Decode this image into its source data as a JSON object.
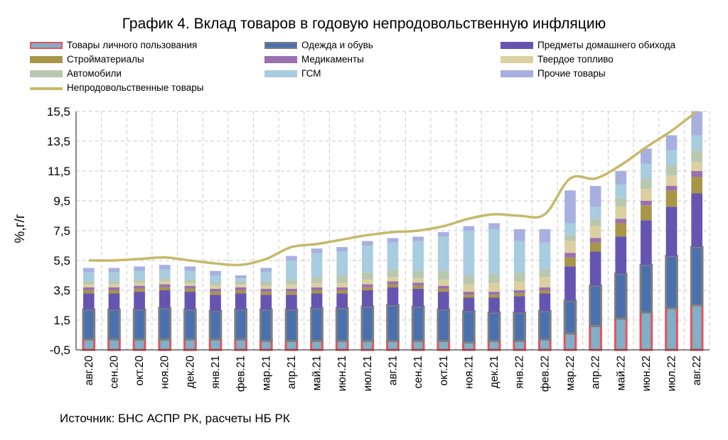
{
  "chart_data": {
    "type": "bar",
    "stacked": true,
    "title": "График 4. Вклад товаров в годовую непродовольственную инфляцию",
    "ylabel": "%,г/г",
    "xlabel": "",
    "ylim": [
      -0.5,
      15.5
    ],
    "yticks": [
      "15,5",
      "13,5",
      "11,5",
      "9,5",
      "7,5",
      "5,5",
      "3,5",
      "1,5",
      "-0,5"
    ],
    "ytick_values": [
      15.5,
      13.5,
      11.5,
      9.5,
      7.5,
      5.5,
      3.5,
      1.5,
      -0.5
    ],
    "grid": true,
    "legend_position": "top",
    "source": "Источник: БНС АСПР РК, расчеты НБ РК",
    "categories": [
      "авг.20",
      "сен.20",
      "окт.20",
      "ноя.20",
      "дек.20",
      "янв.21",
      "фев.21",
      "мар.21",
      "апр.21",
      "май.21",
      "июн.21",
      "июл.21",
      "авг.21",
      "сен.21",
      "окт.21",
      "ноя.21",
      "дек.21",
      "янв.22",
      "фев.22",
      "мар.22",
      "апр.22",
      "май.22",
      "июн.22",
      "июл.22",
      "авг.22"
    ],
    "series": [
      {
        "name": "Товары личного пользования",
        "color": "#7fb0c8",
        "border": "#e8525a",
        "values": [
          0.7,
          0.7,
          0.7,
          0.7,
          0.7,
          0.7,
          0.7,
          0.6,
          0.6,
          0.6,
          0.6,
          0.6,
          0.6,
          0.6,
          0.6,
          0.5,
          0.6,
          0.6,
          0.7,
          1.1,
          1.6,
          2.1,
          2.5,
          2.8,
          3.0
        ]
      },
      {
        "name": "Одежда и обувь",
        "color": "#4a70b0",
        "border": "#7f7f7f",
        "values": [
          2.0,
          2.0,
          2.0,
          2.1,
          2.0,
          1.9,
          2.0,
          2.1,
          2.1,
          2.2,
          2.2,
          2.3,
          2.4,
          2.3,
          2.1,
          2.1,
          1.9,
          1.9,
          1.9,
          2.2,
          2.7,
          3.0,
          3.2,
          3.5,
          3.9
        ]
      },
      {
        "name": "Предметы домашнего обихода",
        "color": "#6655b0",
        "values": [
          1.1,
          1.1,
          1.2,
          1.2,
          1.2,
          1.1,
          1.1,
          1.0,
          1.0,
          1.0,
          1.0,
          1.1,
          1.2,
          1.2,
          1.2,
          0.9,
          1.0,
          1.1,
          1.2,
          2.3,
          2.3,
          2.5,
          3.0,
          3.3,
          3.6
        ]
      },
      {
        "name": "Стройматериалы",
        "color": "#a89648",
        "values": [
          0.2,
          0.2,
          0.2,
          0.2,
          0.2,
          0.2,
          0.2,
          0.2,
          0.2,
          0.2,
          0.2,
          0.2,
          0.2,
          0.2,
          0.2,
          0.2,
          0.2,
          0.2,
          0.2,
          0.6,
          0.6,
          0.9,
          1.0,
          1.1,
          1.1
        ]
      },
      {
        "name": "Медикаменты",
        "color": "#9a70b0",
        "values": [
          0.2,
          0.2,
          0.2,
          0.2,
          0.2,
          0.2,
          0.2,
          0.2,
          0.2,
          0.2,
          0.2,
          0.2,
          0.2,
          0.2,
          0.2,
          0.2,
          0.2,
          0.2,
          0.2,
          0.3,
          0.3,
          0.3,
          0.3,
          0.3,
          0.4
        ]
      },
      {
        "name": "Твердое топливо",
        "color": "#dcd0a2",
        "values": [
          0.2,
          0.2,
          0.2,
          0.2,
          0.2,
          0.2,
          0.2,
          0.2,
          0.3,
          0.3,
          0.3,
          0.3,
          0.3,
          0.3,
          0.4,
          0.5,
          0.6,
          0.6,
          0.7,
          0.8,
          0.8,
          0.8,
          0.8,
          0.7,
          0.6
        ]
      },
      {
        "name": "Автомобили",
        "color": "#b8c8b0",
        "values": [
          0.2,
          0.2,
          0.2,
          0.2,
          0.2,
          0.2,
          0.2,
          0.3,
          0.3,
          0.4,
          0.5,
          0.5,
          0.5,
          0.5,
          0.6,
          0.6,
          0.6,
          0.6,
          0.5,
          0.4,
          0.5,
          0.6,
          0.7,
          0.7,
          0.8
        ]
      },
      {
        "name": "ГСМ",
        "color": "#a8cce0",
        "values": [
          0.6,
          0.6,
          0.6,
          0.6,
          0.6,
          0.5,
          0.2,
          0.6,
          1.3,
          1.6,
          1.6,
          1.8,
          1.8,
          2.0,
          2.3,
          3.0,
          3.0,
          2.1,
          1.8,
          0.8,
          0.8,
          0.9,
          1.0,
          1.0,
          1.0
        ]
      },
      {
        "name": "Прочие товары",
        "color": "#a8b0e0",
        "values": [
          0.3,
          0.3,
          0.3,
          0.3,
          0.3,
          0.3,
          0.2,
          0.3,
          0.3,
          0.3,
          0.3,
          0.3,
          0.3,
          0.3,
          0.3,
          0.3,
          0.4,
          0.8,
          0.9,
          2.2,
          1.4,
          0.9,
          1.0,
          1.0,
          1.6
        ]
      }
    ],
    "line": {
      "name": "Непродовольственные товары",
      "color": "#c8b86a",
      "values": [
        5.5,
        5.5,
        5.6,
        5.7,
        5.5,
        5.3,
        5.2,
        5.6,
        6.4,
        6.6,
        6.9,
        7.2,
        7.4,
        7.5,
        7.8,
        8.3,
        8.6,
        8.5,
        8.6,
        11.0,
        11.0,
        11.9,
        13.1,
        14.2,
        15.5
      ]
    }
  }
}
